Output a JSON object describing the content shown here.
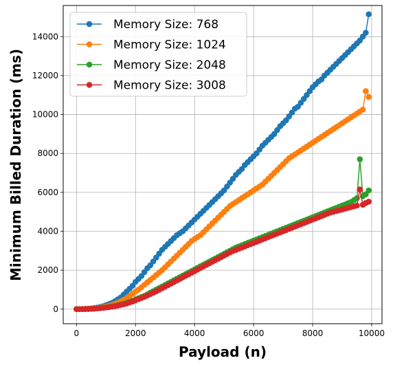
{
  "chart_data": {
    "type": "line",
    "title": "",
    "xlabel": "Payload (n)",
    "ylabel": "Minimum Billed Duration (ms)",
    "xlim": [
      -450,
      10350
    ],
    "ylim": [
      -750,
      15600
    ],
    "xticks": [
      0,
      2000,
      4000,
      6000,
      8000,
      10000
    ],
    "yticks": [
      0,
      2000,
      4000,
      6000,
      8000,
      10000,
      12000,
      14000
    ],
    "grid": true,
    "legend_position": "upper-left",
    "x": [
      0,
      100,
      200,
      300,
      400,
      500,
      600,
      700,
      800,
      900,
      1000,
      1100,
      1200,
      1300,
      1400,
      1500,
      1600,
      1700,
      1800,
      1900,
      2000,
      2100,
      2200,
      2300,
      2400,
      2500,
      2600,
      2700,
      2800,
      2900,
      3000,
      3100,
      3200,
      3300,
      3400,
      3500,
      3600,
      3700,
      3800,
      3900,
      4000,
      4100,
      4200,
      4300,
      4400,
      4500,
      4600,
      4700,
      4800,
      4900,
      5000,
      5100,
      5200,
      5300,
      5400,
      5500,
      5600,
      5700,
      5800,
      5900,
      6000,
      6100,
      6200,
      6300,
      6400,
      6500,
      6600,
      6700,
      6800,
      6900,
      7000,
      7100,
      7200,
      7300,
      7400,
      7500,
      7600,
      7700,
      7800,
      7900,
      8000,
      8100,
      8200,
      8300,
      8400,
      8500,
      8600,
      8700,
      8800,
      8900,
      9000,
      9100,
      9200,
      9300,
      9400,
      9500,
      9600,
      9700,
      9800,
      9900
    ],
    "series": [
      {
        "name": "Memory Size: 768",
        "color": "#1f77b4",
        "values": [
          0,
          0,
          5,
          10,
          20,
          35,
          55,
          80,
          110,
          150,
          200,
          260,
          320,
          400,
          500,
          600,
          750,
          900,
          1050,
          1200,
          1400,
          1550,
          1700,
          1900,
          2100,
          2250,
          2450,
          2650,
          2850,
          3050,
          3200,
          3350,
          3500,
          3650,
          3800,
          3900,
          4000,
          4150,
          4300,
          4450,
          4600,
          4750,
          4900,
          5050,
          5200,
          5350,
          5500,
          5650,
          5800,
          5950,
          6100,
          6300,
          6500,
          6700,
          6900,
          7050,
          7200,
          7400,
          7550,
          7700,
          7850,
          8000,
          8200,
          8400,
          8550,
          8700,
          8850,
          9000,
          9200,
          9400,
          9550,
          9700,
          9900,
          10100,
          10300,
          10400,
          10600,
          10800,
          11000,
          11200,
          11400,
          11550,
          11700,
          11800,
          12000,
          12150,
          12300,
          12450,
          12600,
          12750,
          12900,
          13050,
          13200,
          13350,
          13500,
          13650,
          13800,
          14000,
          14200,
          15150
        ]
      },
      {
        "name": "Memory Size: 1024",
        "color": "#ff7f0e",
        "values": [
          0,
          0,
          5,
          10,
          15,
          25,
          40,
          55,
          75,
          100,
          130,
          170,
          210,
          270,
          330,
          400,
          480,
          570,
          670,
          780,
          900,
          1000,
          1120,
          1250,
          1380,
          1500,
          1620,
          1750,
          1880,
          2000,
          2150,
          2300,
          2450,
          2600,
          2750,
          2900,
          3050,
          3200,
          3350,
          3500,
          3600,
          3700,
          3800,
          3950,
          4100,
          4250,
          4400,
          4550,
          4700,
          4850,
          5000,
          5150,
          5300,
          5400,
          5500,
          5600,
          5700,
          5800,
          5900,
          6000,
          6100,
          6200,
          6300,
          6400,
          6550,
          6700,
          6850,
          7000,
          7150,
          7300,
          7450,
          7600,
          7750,
          7850,
          7950,
          8050,
          8150,
          8250,
          8350,
          8450,
          8550,
          8650,
          8750,
          8850,
          8950,
          9050,
          9150,
          9250,
          9350,
          9450,
          9550,
          9650,
          9750,
          9850,
          9950,
          10050,
          10150,
          10250,
          11200,
          10900
        ]
      },
      {
        "name": "Memory Size: 2048",
        "color": "#2ca02c",
        "values": [
          0,
          0,
          3,
          6,
          10,
          18,
          28,
          40,
          55,
          70,
          90,
          115,
          140,
          170,
          200,
          240,
          280,
          330,
          380,
          430,
          500,
          560,
          620,
          680,
          760,
          840,
          920,
          1000,
          1080,
          1160,
          1240,
          1320,
          1400,
          1480,
          1560,
          1640,
          1720,
          1800,
          1880,
          1960,
          2040,
          2120,
          2200,
          2280,
          2360,
          2440,
          2520,
          2600,
          2680,
          2760,
          2840,
          2920,
          3000,
          3080,
          3160,
          3220,
          3280,
          3340,
          3400,
          3460,
          3520,
          3580,
          3640,
          3700,
          3760,
          3820,
          3880,
          3940,
          4000,
          4060,
          4120,
          4180,
          4240,
          4300,
          4360,
          4420,
          4480,
          4540,
          4600,
          4660,
          4720,
          4780,
          4840,
          4900,
          4960,
          5020,
          5080,
          5140,
          5200,
          5260,
          5320,
          5380,
          5440,
          5500,
          5600,
          5700,
          7700,
          5800,
          5900,
          6100
        ]
      },
      {
        "name": "Memory Size: 3008",
        "color": "#d62728",
        "values": [
          0,
          0,
          3,
          6,
          10,
          16,
          25,
          35,
          48,
          62,
          80,
          100,
          125,
          150,
          180,
          215,
          250,
          290,
          340,
          390,
          450,
          510,
          570,
          630,
          700,
          770,
          840,
          910,
          990,
          1070,
          1150,
          1230,
          1310,
          1390,
          1470,
          1550,
          1630,
          1710,
          1790,
          1870,
          1950,
          2030,
          2110,
          2190,
          2270,
          2350,
          2430,
          2510,
          2590,
          2670,
          2750,
          2830,
          2910,
          2980,
          3040,
          3100,
          3160,
          3220,
          3280,
          3340,
          3400,
          3460,
          3520,
          3580,
          3640,
          3700,
          3760,
          3820,
          3880,
          3940,
          4000,
          4060,
          4120,
          4180,
          4240,
          4300,
          4360,
          4420,
          4480,
          4540,
          4600,
          4660,
          4720,
          4780,
          4840,
          4900,
          4960,
          5000,
          5040,
          5080,
          5120,
          5160,
          5200,
          5240,
          5280,
          5320,
          6150,
          5360,
          5450,
          5520
        ]
      }
    ]
  }
}
